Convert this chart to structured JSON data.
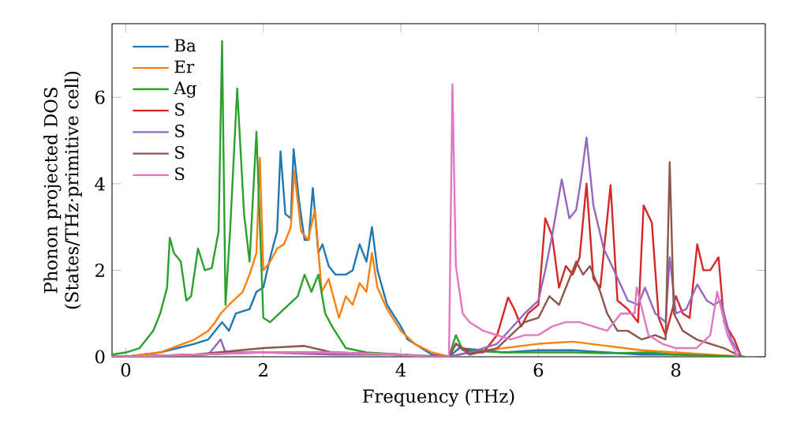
{
  "chart_data": {
    "type": "line",
    "xlabel": "Frequency (THz)",
    "ylabel": "Phonon projected DOS (States/THz·primitive cell)",
    "xlim": [
      -0.2,
      9.3
    ],
    "ylim": [
      0,
      7.7
    ],
    "xticks": [
      0,
      2,
      4,
      6,
      8
    ],
    "yticks": [
      0,
      2,
      4,
      6
    ],
    "legend": "top left",
    "series": [
      {
        "name": "Ba",
        "color": "#1f77b4",
        "x": [
          -0.2,
          0,
          0.5,
          1.0,
          1.2,
          1.4,
          1.5,
          1.6,
          1.8,
          1.9,
          2.0,
          2.1,
          2.2,
          2.25,
          2.32,
          2.4,
          2.44,
          2.52,
          2.6,
          2.66,
          2.72,
          2.8,
          2.86,
          2.95,
          3.05,
          3.2,
          3.3,
          3.4,
          3.5,
          3.58,
          3.66,
          3.8,
          4.0,
          4.1,
          4.3,
          4.45,
          4.7,
          4.85,
          5.5,
          6.0,
          6.5,
          7.0,
          7.5,
          8.0,
          8.8,
          9.0
        ],
        "values": [
          0,
          0,
          0.1,
          0.3,
          0.4,
          0.8,
          0.6,
          1.0,
          1.1,
          1.5,
          1.6,
          2.3,
          2.9,
          4.75,
          3.3,
          3.2,
          4.8,
          3.6,
          2.7,
          2.7,
          3.9,
          2.4,
          2.6,
          2.1,
          1.9,
          1.9,
          2.0,
          2.6,
          2.2,
          3.0,
          2.0,
          1.2,
          0.7,
          0.4,
          0.2,
          0.05,
          0,
          0.2,
          0.1,
          0.15,
          0.15,
          0.1,
          0.05,
          0.05,
          0.02,
          0
        ]
      },
      {
        "name": "Er",
        "color": "#ff7f0e",
        "x": [
          -0.2,
          0,
          0.5,
          1.0,
          1.2,
          1.3,
          1.38,
          1.5,
          1.7,
          1.8,
          1.9,
          1.95,
          2.0,
          2.1,
          2.2,
          2.3,
          2.4,
          2.45,
          2.55,
          2.65,
          2.75,
          2.85,
          2.95,
          3.1,
          3.2,
          3.3,
          3.4,
          3.5,
          3.58,
          3.66,
          3.8,
          4.0,
          4.2,
          4.45,
          4.7,
          5.0,
          6.0,
          6.5,
          7.0,
          7.5,
          8.0,
          8.8,
          9.0
        ],
        "values": [
          0,
          0,
          0.1,
          0.4,
          0.6,
          0.8,
          1.0,
          1.2,
          1.5,
          1.9,
          2.4,
          4.6,
          2.0,
          2.2,
          2.5,
          2.6,
          3.0,
          4.3,
          2.9,
          2.7,
          3.4,
          1.5,
          1.8,
          0.9,
          1.4,
          1.2,
          1.7,
          1.5,
          2.4,
          1.6,
          1.1,
          0.6,
          0.3,
          0.1,
          0,
          0.1,
          0.3,
          0.35,
          0.25,
          0.15,
          0.1,
          0.02,
          0
        ]
      },
      {
        "name": "Ag",
        "color": "#2ca02c",
        "x": [
          -0.2,
          0,
          0.2,
          0.4,
          0.5,
          0.6,
          0.64,
          0.7,
          0.8,
          0.88,
          0.95,
          1.05,
          1.15,
          1.25,
          1.35,
          1.4,
          1.45,
          1.52,
          1.62,
          1.72,
          1.8,
          1.9,
          2.0,
          2.1,
          2.3,
          2.5,
          2.6,
          2.7,
          2.8,
          2.9,
          3.0,
          3.2,
          3.5,
          4.0,
          4.4,
          4.7,
          4.8,
          4.9,
          5.5,
          6.5,
          7.0,
          7.6,
          8.0,
          9.0
        ],
        "values": [
          0.05,
          0.1,
          0.2,
          0.6,
          1.0,
          1.6,
          2.75,
          2.4,
          2.2,
          1.3,
          1.4,
          2.5,
          2.0,
          2.05,
          2.9,
          7.3,
          1.2,
          3.0,
          6.2,
          3.3,
          2.2,
          5.2,
          0.9,
          0.8,
          1.1,
          1.4,
          1.9,
          1.5,
          1.9,
          1.0,
          0.7,
          0.2,
          0.1,
          0.05,
          0.02,
          0,
          0.5,
          0.15,
          0.1,
          0.1,
          0.08,
          0.1,
          0.05,
          0
        ]
      },
      {
        "name": "S",
        "color": "#d62728",
        "x": [
          -0.2,
          0,
          1.0,
          2.0,
          3.0,
          4.0,
          4.4,
          4.7,
          4.8,
          5.0,
          5.2,
          5.4,
          5.56,
          5.65,
          5.75,
          5.85,
          6.0,
          6.1,
          6.2,
          6.3,
          6.4,
          6.5,
          6.6,
          6.7,
          6.8,
          6.9,
          7.05,
          7.15,
          7.3,
          7.45,
          7.53,
          7.65,
          7.75,
          7.85,
          8.0,
          8.1,
          8.2,
          8.31,
          8.4,
          8.5,
          8.62,
          8.7,
          8.85,
          8.95
        ],
        "values": [
          0,
          0,
          0.05,
          0.1,
          0.1,
          0.05,
          0,
          0,
          0.3,
          0.1,
          0.1,
          0.5,
          1.37,
          1.1,
          0.7,
          1.0,
          1.2,
          3.2,
          2.8,
          1.6,
          2.1,
          1.9,
          2.3,
          4.0,
          1.8,
          1.6,
          3.97,
          1.3,
          1.1,
          0.8,
          3.5,
          3.1,
          0.9,
          0.5,
          1.4,
          1.0,
          0.9,
          2.6,
          2.0,
          2.0,
          2.3,
          0.8,
          0.4,
          0
        ]
      },
      {
        "name": "S",
        "color": "#9467bd",
        "x": [
          -0.2,
          0,
          1.2,
          1.38,
          1.45,
          2.0,
          3.0,
          4.0,
          4.4,
          4.7,
          5.0,
          5.4,
          5.8,
          6.0,
          6.1,
          6.2,
          6.34,
          6.45,
          6.55,
          6.62,
          6.7,
          6.8,
          6.95,
          7.1,
          7.3,
          7.45,
          7.55,
          7.7,
          7.85,
          7.91,
          8.0,
          8.15,
          8.31,
          8.45,
          8.55,
          8.65,
          8.8,
          8.95
        ],
        "values": [
          0,
          0,
          0.05,
          0.4,
          0.1,
          0.1,
          0.05,
          0.05,
          0,
          0,
          0.1,
          0.3,
          1.0,
          1.3,
          2.0,
          2.8,
          4.1,
          3.2,
          3.4,
          4.1,
          5.07,
          3.5,
          2.5,
          2.0,
          1.3,
          1.2,
          1.6,
          1.0,
          0.8,
          2.3,
          1.0,
          1.1,
          1.67,
          1.3,
          1.2,
          1.3,
          0.4,
          0
        ]
      },
      {
        "name": "S",
        "color": "#8c564b",
        "x": [
          -0.2,
          0,
          1.0,
          2.0,
          2.6,
          3.0,
          4.0,
          4.4,
          4.7,
          4.8,
          5.0,
          5.4,
          5.6,
          5.8,
          6.0,
          6.16,
          6.3,
          6.45,
          6.55,
          6.65,
          6.75,
          6.9,
          7.0,
          7.15,
          7.3,
          7.5,
          7.7,
          7.85,
          7.91,
          7.97,
          8.1,
          8.3,
          8.5,
          8.7,
          8.95
        ],
        "values": [
          0,
          0,
          0.05,
          0.2,
          0.25,
          0.1,
          0.05,
          0,
          0,
          0.3,
          0.05,
          0.2,
          0.5,
          0.8,
          0.9,
          1.4,
          1.2,
          1.8,
          2.2,
          1.9,
          2.1,
          1.5,
          1.0,
          0.6,
          0.6,
          0.4,
          0.5,
          0.4,
          4.5,
          1.0,
          0.6,
          0.4,
          0.3,
          0.2,
          0
        ]
      },
      {
        "name": "S",
        "color": "#e377c2",
        "x": [
          -0.2,
          0,
          1.0,
          2.0,
          3.0,
          4.0,
          4.4,
          4.7,
          4.75,
          4.8,
          4.9,
          5.0,
          5.2,
          5.4,
          5.6,
          5.8,
          6.0,
          6.2,
          6.4,
          6.6,
          6.8,
          7.0,
          7.2,
          7.4,
          7.43,
          7.6,
          7.8,
          8.0,
          8.3,
          8.5,
          8.6,
          8.75,
          8.9
        ],
        "values": [
          0,
          0,
          0.05,
          0.1,
          0.1,
          0.05,
          0,
          0,
          6.3,
          2.1,
          1.0,
          0.8,
          0.6,
          0.5,
          0.4,
          0.5,
          0.5,
          0.7,
          0.8,
          0.8,
          0.7,
          0.6,
          1.0,
          1.0,
          1.6,
          0.5,
          0.3,
          0.2,
          0.2,
          0.5,
          1.5,
          0.5,
          0
        ]
      }
    ]
  }
}
